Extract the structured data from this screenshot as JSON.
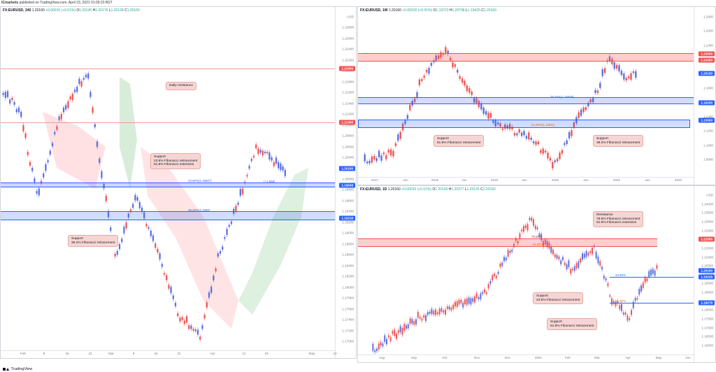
{
  "publisher": {
    "author": "ICmarkets",
    "text": "published on TradingView.com, April 23, 2021 01:09:23 BST"
  },
  "footer": {
    "brand": "TradingView"
  },
  "colors": {
    "up": "#26a69a",
    "down": "#ef5350",
    "resistance": "#ef5350",
    "support_zone": "#2962ff",
    "price_badge": "#2962ff",
    "cloud_green": "#c8e6c9",
    "cloud_red": "#ffcdd2"
  },
  "panels": {
    "h4": {
      "header": {
        "symbol": "FX:EURUSD, 240",
        "price": "1.20160",
        "change": "+0.00015 (+0.01%)",
        "o": "1.20145",
        "h": "1.20176",
        "l": "1.20128",
        "c": "1.20160"
      },
      "y_ticks": [
        "USD",
        "1.22800",
        "1.22600",
        "1.22400",
        "1.22200",
        "1.22000",
        "1.21800",
        "1.21600",
        "1.21400",
        "1.21200",
        "1.21000",
        "1.20800",
        "1.20600",
        "1.20400",
        "1.20200",
        "1.20000",
        "1.19800",
        "1.19600",
        "1.19400",
        "1.19200",
        "1.19000",
        "1.18800",
        "1.18600",
        "1.18400",
        "1.18200",
        "1.18000",
        "1.17800",
        "1.17600",
        "1.17400",
        "1.17200",
        "1.17000"
      ],
      "x_ticks": [
        "Feb",
        "8",
        "15",
        "22",
        "Mar",
        "8",
        "15",
        "22",
        "Apr",
        "12",
        "19",
        "May",
        "10"
      ],
      "badges": [
        "1.22000",
        "1.21000",
        "1.20160",
        "1.19548",
        "1.19216"
      ],
      "fib_labels": [
        "23.60%(1.19567)",
        "38.20%(1.1935)",
        "(+1.955)"
      ],
      "notes": {
        "resistance": "Daily resistance",
        "support1": "Support\n23.6% Fibonacci retracement\n61.8% Fibonacci extension",
        "support2": "Support\n38.2% Fibonacci retracement"
      }
    },
    "weekly": {
      "header": {
        "symbol": "FX:EURUSD, 1W",
        "price": "1.20160",
        "change": "+0.00015 (+0.01%)",
        "o": "1.19723",
        "h": "1.20798",
        "l": "1.19425",
        "c": "1.20160"
      },
      "y_ticks": [
        "1.2800",
        "1.2600",
        "1.2400",
        "1.2200",
        "1.2000",
        "1.1800",
        "1.1600",
        "1.1400",
        "1.1200",
        "1.1000",
        "1.0800"
      ],
      "x_ticks": [
        "2017",
        "Jun",
        "2018",
        "Jun",
        "2019",
        "Jun",
        "2020",
        "Jun",
        "2021",
        "Jun",
        "2022"
      ],
      "badges": [
        "1.23000",
        "1.22000",
        "1.20160",
        "1.16200",
        "1.13000"
      ],
      "fib_labels": [
        "38.20%(1.16949)",
        "61.80%(1.12911)"
      ],
      "notes": {
        "support1": "Support\n61.8% Fibonacci retracement",
        "support2": "Support\n38.2% Fibonacci retracement"
      }
    },
    "daily": {
      "header": {
        "symbol": "FX:EURUSD, 1D",
        "price": "1.20160",
        "change": "+0.00015 (+0.01%)",
        "o": "1.20145",
        "h": "1.20377",
        "l": "1.20126",
        "c": "1.20160"
      },
      "y_ticks": [
        "USD",
        "1.24000",
        "1.23500",
        "1.23000",
        "1.22500",
        "1.22000",
        "1.21500",
        "1.21000",
        "1.20500",
        "1.20000",
        "1.19500",
        "1.19000",
        "1.18500",
        "1.18000",
        "1.17500",
        "1.17000",
        "1.16500",
        "1.16000"
      ],
      "x_ticks": [
        "Aug",
        "Sep",
        "Oct",
        "Nov",
        "Dec",
        "2021",
        "Feb",
        "Mar",
        "Apr",
        "May",
        "Jun"
      ],
      "badges": [
        "1.22000",
        "1.20160",
        "1.19228",
        "1.18278"
      ],
      "fib_labels": [
        "78.60%",
        "61.80%",
        "23.60%",
        "61.80%"
      ],
      "notes": {
        "resistance": "Resistance\n78.6% Fibonacci retracement\n61.8% Fibonacci extension",
        "support1": "Support\n23.6% Fibonacci retracement",
        "support2": "Support\n61.8% Fibonacci retracement"
      }
    }
  },
  "labels": {
    "o": "O",
    "h": "H",
    "l": "L",
    "c": "C"
  }
}
